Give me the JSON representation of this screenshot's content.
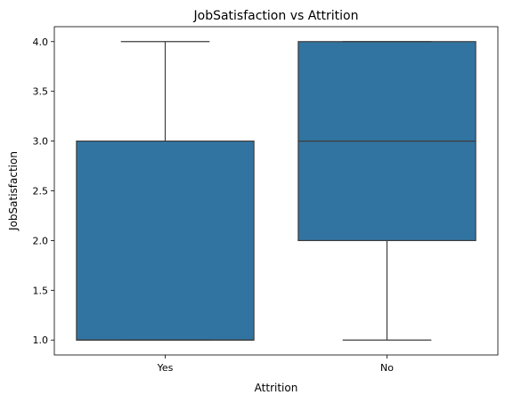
{
  "chart_data": {
    "type": "box",
    "title": "JobSatisfaction vs Attrition",
    "xlabel": "Attrition",
    "ylabel": "JobSatisfaction",
    "categories": [
      "Yes",
      "No"
    ],
    "ylim": [
      0.85,
      4.15
    ],
    "yticks": [
      1.0,
      1.5,
      2.0,
      2.5,
      3.0,
      3.5,
      4.0
    ],
    "ytick_labels": [
      "1.0",
      "1.5",
      "2.0",
      "2.5",
      "3.0",
      "3.5",
      "4.0"
    ],
    "boxes": [
      {
        "category": "Yes",
        "whisker_low": 1.0,
        "q1": 1.0,
        "median": 1.0,
        "q3": 3.0,
        "whisker_high": 4.0
      },
      {
        "category": "No",
        "whisker_low": 1.0,
        "q1": 2.0,
        "median": 3.0,
        "q3": 4.0,
        "whisker_high": 4.0
      }
    ],
    "grid": false,
    "legend": "none",
    "colors": {
      "box_fill": "#3274a1",
      "line": "#3d3d3d"
    }
  }
}
